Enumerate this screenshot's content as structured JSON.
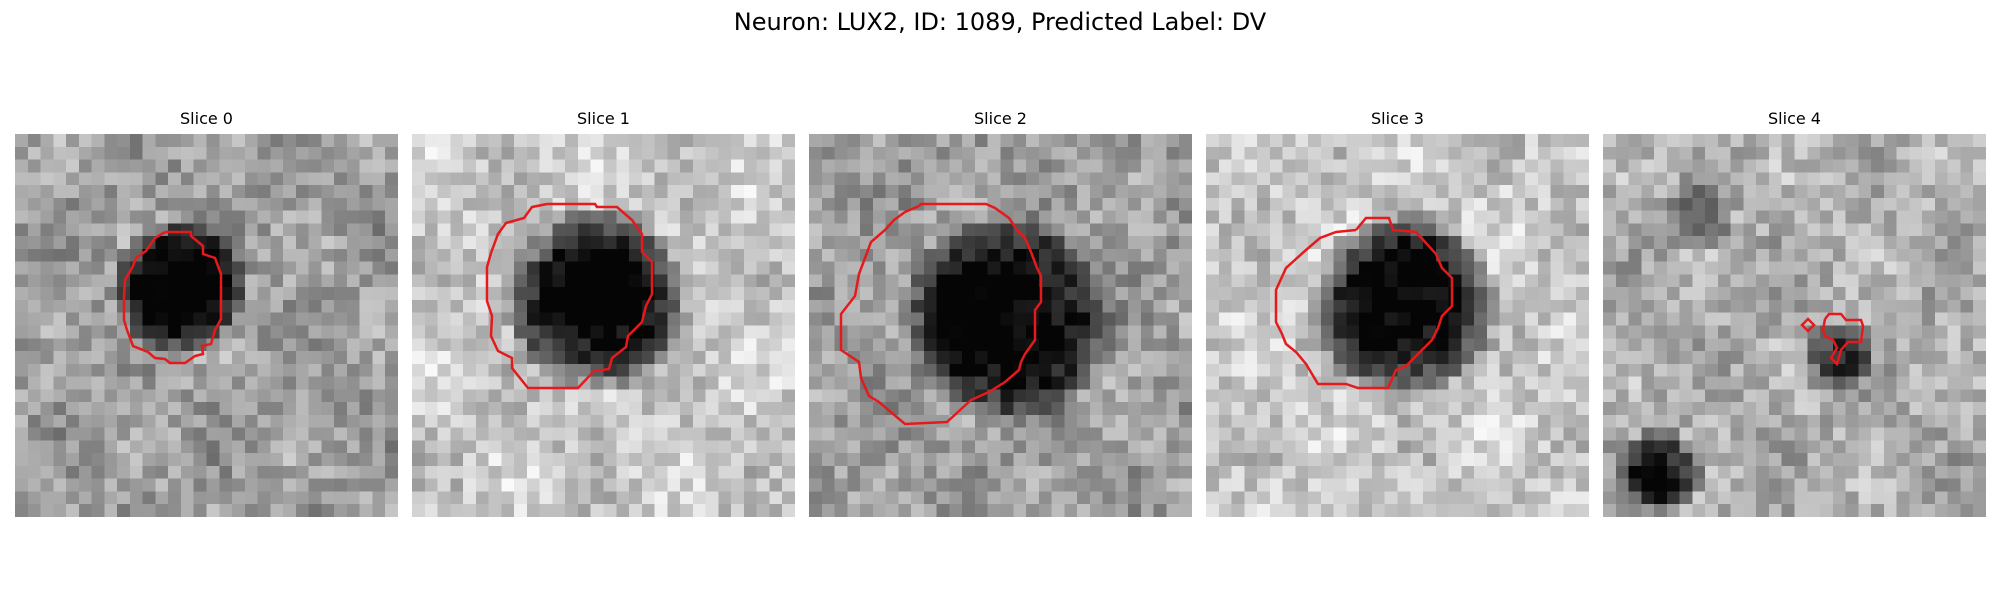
{
  "figure": {
    "title": "Neuron: LUX2, ID: 1089, Predicted Label: DV"
  },
  "panels": [
    {
      "title": "Slice 0",
      "contour_color": "#e41a1c"
    },
    {
      "title": "Slice 1",
      "contour_color": "#e41a1c"
    },
    {
      "title": "Slice 2",
      "contour_color": "#e41a1c"
    },
    {
      "title": "Slice 3",
      "contour_color": "#e41a1c"
    },
    {
      "title": "Slice 4",
      "contour_color": "#e41a1c"
    }
  ]
}
